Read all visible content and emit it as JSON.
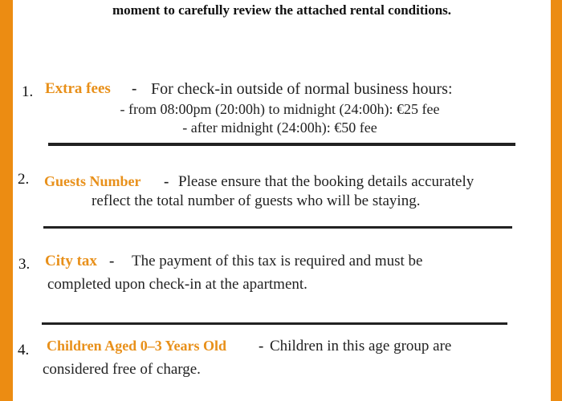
{
  "intro": "moment to carefully review the attached rental conditions.",
  "items": [
    {
      "number": "1.",
      "heading": "Extra fees",
      "separator": "-",
      "text": "For check-in outside of normal business hours:",
      "lines": [
        "- from 08:00pm (20:00h) to midnight (24:00h): €25 fee",
        "- after midnight (24:00h): €50 fee"
      ]
    },
    {
      "number": "2.",
      "heading": "Guests Number",
      "separator": "-",
      "text": "Please ensure that the booking details accurately",
      "lines": [
        "reflect the total number of guests who will be staying."
      ]
    },
    {
      "number": "3.",
      "heading": "City tax",
      "separator": "-",
      "text": "The payment of this tax is required and must be",
      "lines": [
        "completed  upon check-in at the apartment."
      ]
    },
    {
      "number": "4.",
      "heading": "Children Aged 0–3 Years Old",
      "separator": "-",
      "text": "Children in this age group are",
      "lines": [
        "considered free of charge."
      ]
    }
  ],
  "colors": {
    "border": "#ec8c12",
    "heading": "#e8901a",
    "text": "#222222"
  }
}
